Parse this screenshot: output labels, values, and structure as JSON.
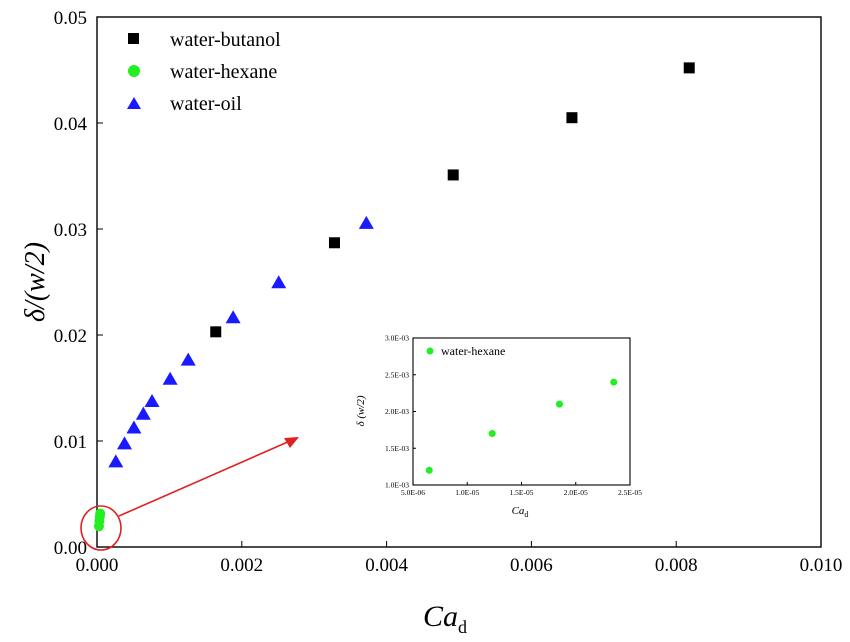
{
  "chart_data": [
    {
      "type": "scatter",
      "xlabel": "Ca",
      "xlabel_sub": "d",
      "ylabel": "δ/(w/2)",
      "xlim": [
        0,
        0.01
      ],
      "ylim": [
        0,
        0.05
      ],
      "xticks": [
        0,
        0.002,
        0.004,
        0.006,
        0.008,
        0.01
      ],
      "xtick_labels": [
        "0.000",
        "0.002",
        "0.004",
        "0.006",
        "0.008",
        "0.010"
      ],
      "yticks": [
        0,
        0.01,
        0.02,
        0.03,
        0.04,
        0.05
      ],
      "ytick_labels": [
        "0.00",
        "0.01",
        "0.02",
        "0.03",
        "0.04",
        "0.05"
      ],
      "legend_position": "top-left",
      "grid": false,
      "series": [
        {
          "name": "water-butanol",
          "marker": "square",
          "color": "#000000",
          "x": [
            0.00164,
            0.00328,
            0.00492,
            0.00656,
            0.00818
          ],
          "y": [
            0.0203,
            0.0287,
            0.0351,
            0.0405,
            0.0452
          ]
        },
        {
          "name": "water-hexane",
          "marker": "circle",
          "color": "#22ee22",
          "x": [
            6.5e-06,
            1.23e-05,
            1.85e-05,
            2.35e-05
          ],
          "y": [
            0.0012,
            0.0017,
            0.0021,
            0.0024
          ]
        },
        {
          "name": "water-oil",
          "marker": "triangle",
          "color": "#1a1aff",
          "x": [
            0.00026,
            0.00038,
            0.00051,
            0.00064,
            0.00076,
            0.00101,
            0.00126,
            0.00188,
            0.00251,
            0.00372
          ],
          "y": [
            0.008,
            0.0097,
            0.0112,
            0.0125,
            0.0137,
            0.0158,
            0.0176,
            0.0216,
            0.0249,
            0.0305
          ]
        }
      ],
      "annotations": [
        {
          "type": "ellipse",
          "color": "#e02020",
          "note": "highlights water-hexane points near origin"
        },
        {
          "type": "arrow",
          "color": "#e02020",
          "note": "points to inset"
        }
      ]
    },
    {
      "type": "scatter",
      "role": "inset",
      "xlabel": "Ca",
      "xlabel_sub": "d",
      "ylabel": "δ (w/2)",
      "xlim": [
        5e-06,
        2.5e-05
      ],
      "ylim": [
        0.001,
        0.003
      ],
      "xticks": [
        5e-06,
        1e-05,
        1.5e-05,
        2e-05,
        2.5e-05
      ],
      "xtick_labels": [
        "5.0E-06",
        "1.0E-05",
        "1.5E-05",
        "2.0E-05",
        "2.5E-05"
      ],
      "yticks": [
        0.001,
        0.0015,
        0.002,
        0.0025,
        0.003
      ],
      "ytick_labels": [
        "1.0E-03",
        "1.5E-03",
        "2.0E-03",
        "2.5E-03",
        "3.0E-03"
      ],
      "legend_position": "top-left",
      "series": [
        {
          "name": "water-hexane",
          "marker": "circle",
          "color": "#22ee22",
          "x": [
            6.5e-06,
            1.23e-05,
            1.85e-05,
            2.35e-05
          ],
          "y": [
            0.0012,
            0.0017,
            0.0021,
            0.0024
          ]
        }
      ]
    }
  ]
}
